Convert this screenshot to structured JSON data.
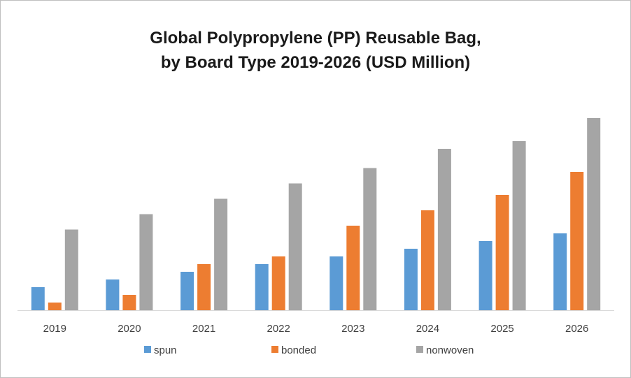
{
  "chart_data": {
    "type": "bar",
    "title_line1": "Global Polypropylene (PP) Reusable Bag,",
    "title_line2": "by Board Type 2019-2026 (USD Million)",
    "xlabel": "",
    "ylabel": "",
    "grid": false,
    "y_axis_shown": false,
    "legend_position": "bottom",
    "ylim": [
      0,
      100
    ],
    "categories": [
      "2019",
      "2020",
      "2021",
      "2022",
      "2023",
      "2024",
      "2025",
      "2026"
    ],
    "series": [
      {
        "name": "spun",
        "color": "#5b9bd5",
        "values": [
          12,
          16,
          20,
          24,
          28,
          32,
          36,
          40
        ]
      },
      {
        "name": "bonded",
        "color": "#ed7d31",
        "values": [
          4,
          8,
          24,
          28,
          44,
          52,
          60,
          72
        ]
      },
      {
        "name": "nonwoven",
        "color": "#a5a5a5",
        "values": [
          42,
          50,
          58,
          66,
          74,
          84,
          88,
          100
        ]
      }
    ]
  }
}
